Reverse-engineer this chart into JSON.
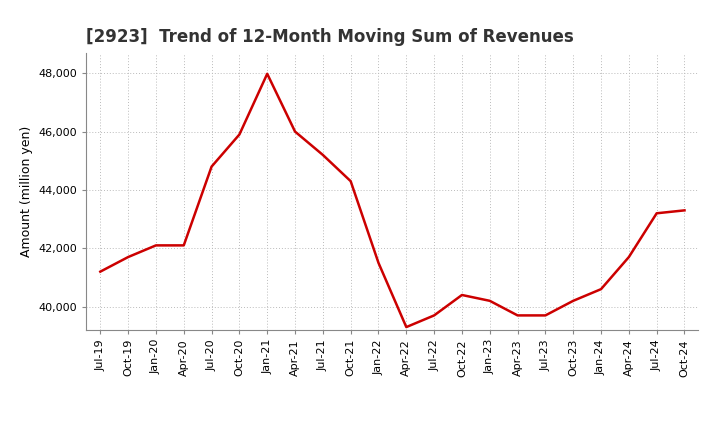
{
  "title": "[2923]  Trend of 12-Month Moving Sum of Revenues",
  "ylabel": "Amount (million yen)",
  "line_color": "#cc0000",
  "line_width": 1.8,
  "background_color": "#ffffff",
  "grid_color": "#bbbbbb",
  "ylim": [
    39200,
    48700
  ],
  "yticks": [
    40000,
    42000,
    44000,
    46000,
    48000
  ],
  "x_labels": [
    "Jul-19",
    "Oct-19",
    "Jan-20",
    "Apr-20",
    "Jul-20",
    "Oct-20",
    "Jan-21",
    "Apr-21",
    "Jul-21",
    "Oct-21",
    "Jan-22",
    "Apr-22",
    "Jul-22",
    "Oct-22",
    "Jan-23",
    "Apr-23",
    "Jul-23",
    "Oct-23",
    "Jan-24",
    "Apr-24",
    "Jul-24",
    "Oct-24"
  ],
  "values": [
    41200,
    41700,
    42100,
    42100,
    44800,
    45900,
    47980,
    46000,
    45200,
    44300,
    41500,
    39300,
    39700,
    40400,
    40200,
    39700,
    39700,
    40200,
    40600,
    41700,
    43200,
    43300
  ],
  "title_fontsize": 12,
  "ylabel_fontsize": 9,
  "tick_fontsize": 8
}
